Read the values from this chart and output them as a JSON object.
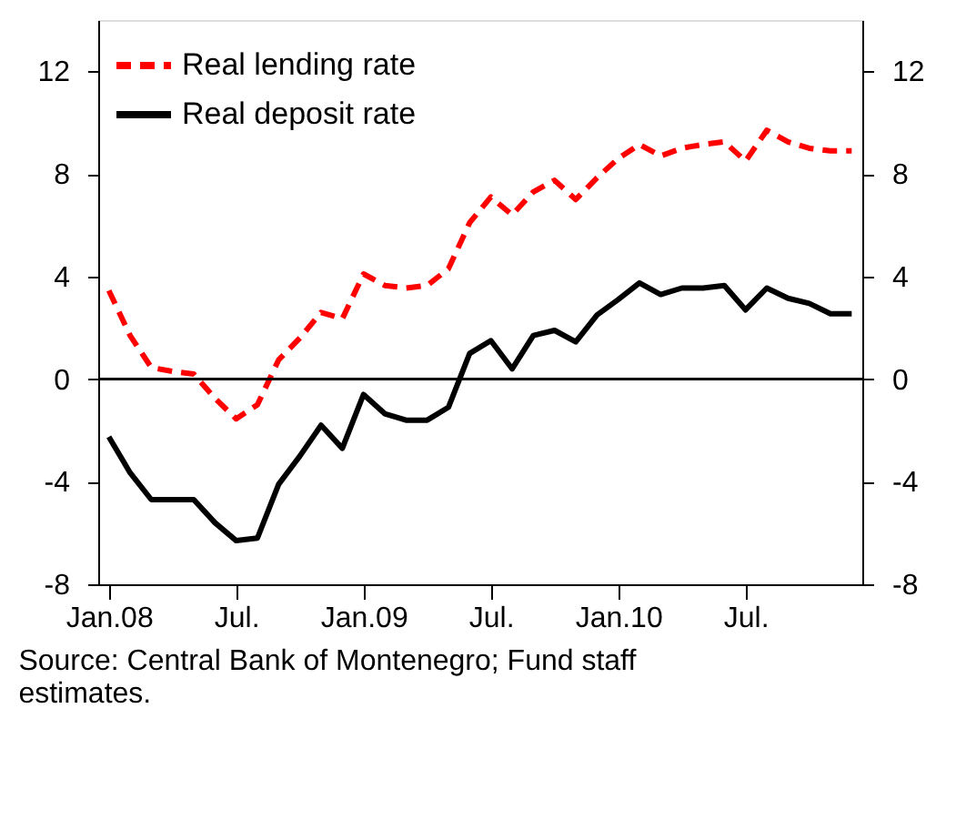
{
  "chart_data": {
    "type": "line",
    "categories": [
      "Jan.08",
      null,
      null,
      null,
      null,
      null,
      "Jul.",
      null,
      null,
      null,
      null,
      null,
      "Jan.09",
      null,
      null,
      null,
      null,
      null,
      "Jul.",
      null,
      null,
      null,
      null,
      null,
      "Jan.10",
      null,
      null,
      null,
      null,
      null,
      "Jul.",
      null,
      null,
      null,
      null,
      null
    ],
    "series": [
      {
        "name": "Real lending rate",
        "color": "#ff0000",
        "line_style": "dashed",
        "values": [
          3.45,
          1.7,
          0.45,
          0.3,
          0.2,
          -0.75,
          -1.55,
          -1.0,
          0.75,
          1.6,
          2.6,
          2.35,
          4.1,
          3.65,
          3.55,
          3.65,
          4.3,
          6.1,
          7.1,
          6.4,
          7.3,
          7.75,
          7.0,
          7.85,
          8.6,
          9.15,
          8.7,
          9.0,
          9.15,
          9.25,
          8.5,
          9.7,
          9.25,
          9.0,
          8.9,
          8.9
        ]
      },
      {
        "name": "Real deposit rate",
        "color": "#000000",
        "line_style": "solid",
        "values": [
          -2.25,
          -3.65,
          -4.7,
          -4.7,
          -4.7,
          -5.6,
          -6.3,
          -6.2,
          -4.1,
          -3.0,
          -1.8,
          -2.7,
          -0.6,
          -1.35,
          -1.6,
          -1.6,
          -1.1,
          1.0,
          1.5,
          0.4,
          1.7,
          1.9,
          1.45,
          2.5,
          3.1,
          3.75,
          3.3,
          3.55,
          3.55,
          3.65,
          2.7,
          3.55,
          3.15,
          2.95,
          2.55,
          2.55
        ]
      }
    ],
    "ylim": [
      -8,
      14
    ],
    "yticks": [
      -8,
      -4,
      0,
      4,
      8,
      12
    ],
    "y2lim": [
      -8,
      14
    ],
    "y2ticks": [
      -8,
      -4,
      0,
      4,
      8,
      12
    ],
    "ref_lines": [
      {
        "axis": "y",
        "value": 0,
        "color": "#000000"
      }
    ],
    "legend": "top left",
    "grid": false,
    "annotations": [
      "Source: Central Bank of Montenegro; Fund staff estimates."
    ]
  }
}
